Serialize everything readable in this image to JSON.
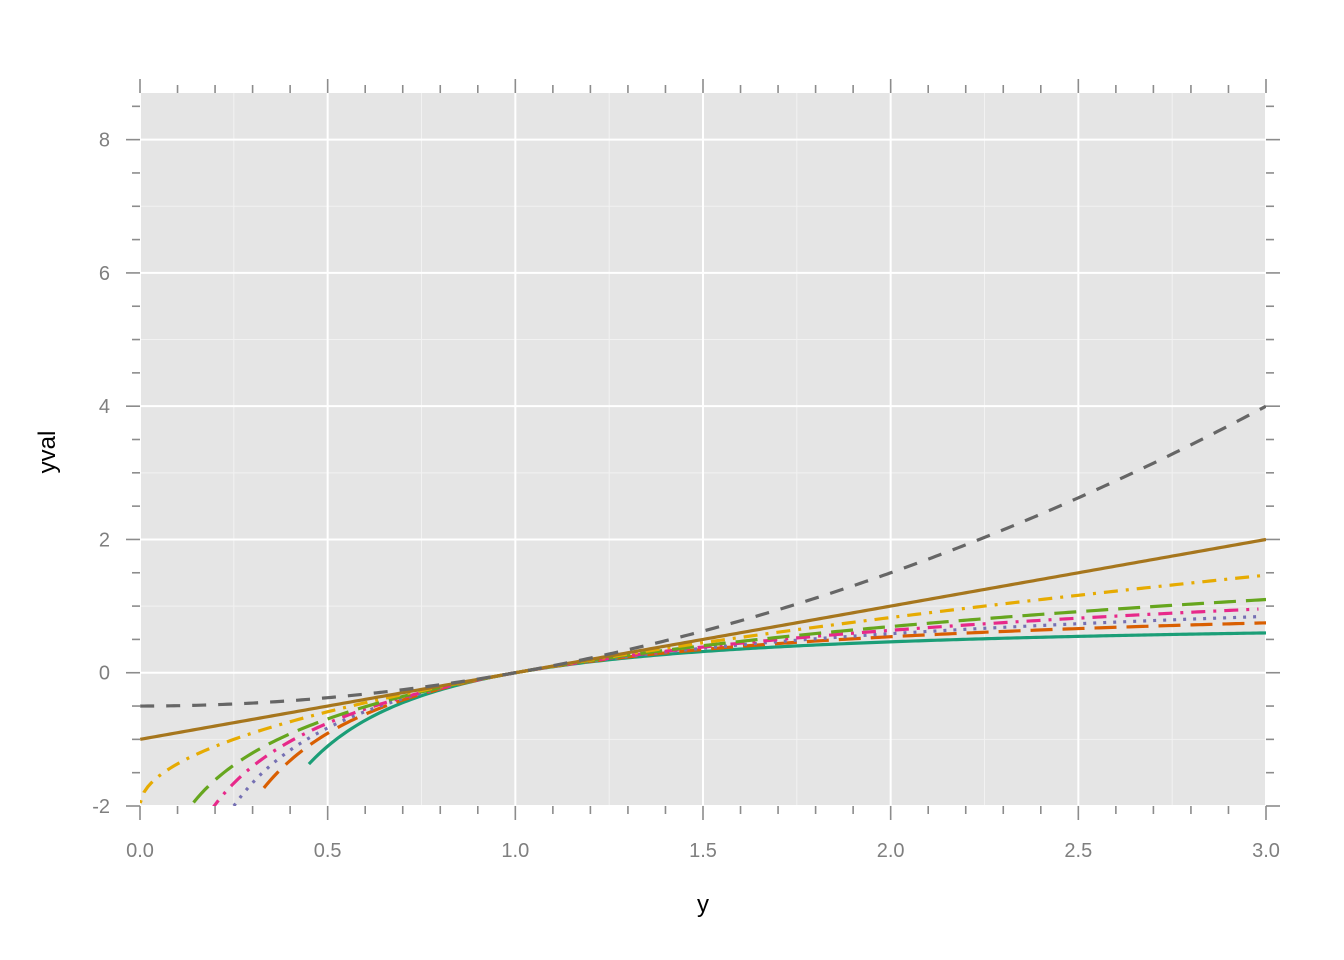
{
  "chart_data": {
    "type": "line",
    "title": "",
    "xlabel": "y",
    "ylabel": "yval",
    "xlim": [
      0,
      3
    ],
    "ylim": [
      -2,
      8.7
    ],
    "x_ticks": [
      0.0,
      0.5,
      1.0,
      1.5,
      2.0,
      2.5,
      3.0
    ],
    "x_tick_labels": [
      "0.0",
      "0.5",
      "1.0",
      "1.5",
      "2.0",
      "2.5",
      "3.0"
    ],
    "y_ticks": [
      -2,
      0,
      2,
      4,
      6,
      8
    ],
    "y_tick_labels": [
      "-2",
      "0",
      "2",
      "4",
      "6",
      "8"
    ],
    "grid": true,
    "legend": "none",
    "curve_formula": "(y^lambda - 1) / lambda",
    "series": [
      {
        "lambda": -1.25,
        "color": "#1b9e77",
        "dash": "solid",
        "x_domain": [
          0.45,
          3.0
        ]
      },
      {
        "lambda": -0.75,
        "color": "#d95f02",
        "dash": "longdash",
        "x_domain": [
          0.33,
          3.0
        ]
      },
      {
        "lambda": -0.5,
        "color": "#7570b3",
        "dash": "dotted",
        "x_domain": [
          0.25,
          2.98
        ]
      },
      {
        "lambda": -0.25,
        "color": "#e7298a",
        "dash": "dotdash",
        "x_domain": [
          0.13,
          2.98
        ]
      },
      {
        "lambda": 0,
        "color": "#66a61e",
        "dash": "longdash",
        "x_domain": [
          0.015,
          3.0
        ]
      },
      {
        "lambda": 0.5,
        "color": "#e6ab02",
        "dash": "dotdash",
        "x_domain": [
          0.0,
          3.0
        ]
      },
      {
        "lambda": 1,
        "color": "#a6761d",
        "dash": "solid",
        "x_domain": [
          0.0,
          3.0
        ]
      },
      {
        "lambda": 2,
        "color": "#666666",
        "dash": "dashed",
        "x_domain": [
          0.0,
          3.0
        ]
      }
    ]
  }
}
